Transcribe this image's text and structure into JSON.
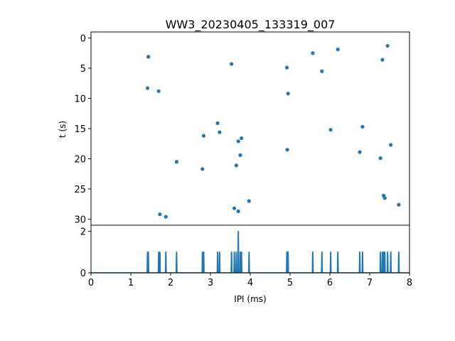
{
  "chart_data": [
    {
      "type": "scatter",
      "title": "WW3_20230405_133319_007",
      "xlabel": "",
      "ylabel": "t (s)",
      "xlim": [
        0,
        8
      ],
      "ylim": [
        31,
        -1
      ],
      "y_inverted": true,
      "yticks": [
        0,
        5,
        10,
        15,
        20,
        25,
        30
      ],
      "color": "#1f77b4",
      "points": [
        {
          "x": 1.44,
          "y": 3.1
        },
        {
          "x": 1.42,
          "y": 8.3
        },
        {
          "x": 1.7,
          "y": 8.8
        },
        {
          "x": 1.73,
          "y": 29.2
        },
        {
          "x": 1.88,
          "y": 29.6
        },
        {
          "x": 2.15,
          "y": 20.5
        },
        {
          "x": 2.8,
          "y": 21.7
        },
        {
          "x": 2.83,
          "y": 16.2
        },
        {
          "x": 3.18,
          "y": 14.1
        },
        {
          "x": 3.23,
          "y": 15.6
        },
        {
          "x": 3.53,
          "y": 4.3
        },
        {
          "x": 3.6,
          "y": 28.2
        },
        {
          "x": 3.65,
          "y": 21.1
        },
        {
          "x": 3.7,
          "y": 17.1
        },
        {
          "x": 3.7,
          "y": 28.7
        },
        {
          "x": 3.75,
          "y": 19.4
        },
        {
          "x": 3.78,
          "y": 16.6
        },
        {
          "x": 3.97,
          "y": 27.0
        },
        {
          "x": 4.92,
          "y": 4.9
        },
        {
          "x": 4.93,
          "y": 18.5
        },
        {
          "x": 4.95,
          "y": 9.2
        },
        {
          "x": 5.57,
          "y": 2.5
        },
        {
          "x": 5.8,
          "y": 5.5
        },
        {
          "x": 6.02,
          "y": 15.2
        },
        {
          "x": 6.2,
          "y": 1.9
        },
        {
          "x": 6.75,
          "y": 18.9
        },
        {
          "x": 6.82,
          "y": 14.7
        },
        {
          "x": 7.27,
          "y": 19.9
        },
        {
          "x": 7.32,
          "y": 3.6
        },
        {
          "x": 7.35,
          "y": 26.1
        },
        {
          "x": 7.38,
          "y": 26.5
        },
        {
          "x": 7.45,
          "y": 1.3
        },
        {
          "x": 7.53,
          "y": 17.7
        },
        {
          "x": 7.73,
          "y": 27.6
        }
      ]
    },
    {
      "type": "line",
      "title": "",
      "xlabel": "IPI (ms)",
      "ylabel": "",
      "xlim": [
        0,
        8
      ],
      "ylim": [
        0,
        2.3
      ],
      "xticks": [
        0,
        1,
        2,
        3,
        4,
        5,
        6,
        7,
        8
      ],
      "yticks": [
        0,
        2
      ],
      "color": "#1f77b4",
      "spikes": [
        {
          "x": 1.42,
          "y": 1
        },
        {
          "x": 1.44,
          "y": 1
        },
        {
          "x": 1.7,
          "y": 1
        },
        {
          "x": 1.73,
          "y": 1
        },
        {
          "x": 1.88,
          "y": 1
        },
        {
          "x": 2.15,
          "y": 1
        },
        {
          "x": 2.8,
          "y": 1
        },
        {
          "x": 2.83,
          "y": 1
        },
        {
          "x": 3.18,
          "y": 1
        },
        {
          "x": 3.23,
          "y": 1
        },
        {
          "x": 3.53,
          "y": 1
        },
        {
          "x": 3.6,
          "y": 1
        },
        {
          "x": 3.65,
          "y": 1
        },
        {
          "x": 3.7,
          "y": 2
        },
        {
          "x": 3.75,
          "y": 1
        },
        {
          "x": 3.78,
          "y": 1
        },
        {
          "x": 3.97,
          "y": 1
        },
        {
          "x": 4.92,
          "y": 1
        },
        {
          "x": 4.93,
          "y": 1
        },
        {
          "x": 4.95,
          "y": 1
        },
        {
          "x": 5.57,
          "y": 1
        },
        {
          "x": 5.8,
          "y": 1
        },
        {
          "x": 6.02,
          "y": 1
        },
        {
          "x": 6.2,
          "y": 1
        },
        {
          "x": 6.75,
          "y": 1
        },
        {
          "x": 6.82,
          "y": 1
        },
        {
          "x": 7.27,
          "y": 1
        },
        {
          "x": 7.32,
          "y": 1
        },
        {
          "x": 7.35,
          "y": 1
        },
        {
          "x": 7.38,
          "y": 1
        },
        {
          "x": 7.45,
          "y": 1
        },
        {
          "x": 7.53,
          "y": 1
        },
        {
          "x": 7.73,
          "y": 1
        }
      ]
    }
  ]
}
